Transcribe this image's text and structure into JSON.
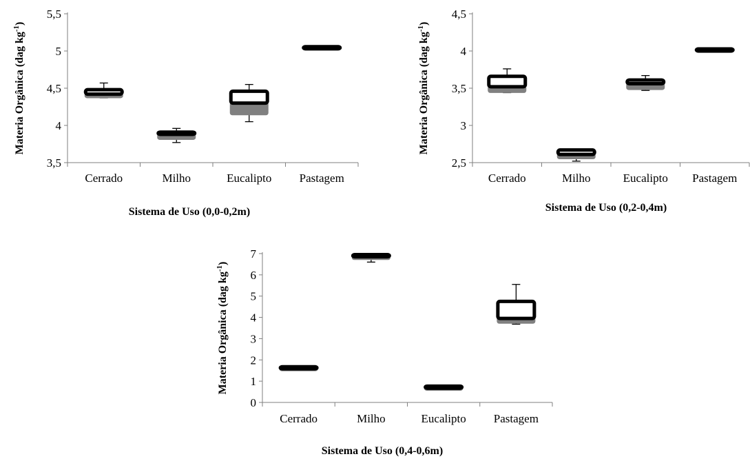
{
  "colors": {
    "upper_box": "#000000",
    "lower_box": "#808080",
    "axis": "#7f7f7f",
    "text": "#000000"
  },
  "chart_data": [
    {
      "type": "box",
      "title": "",
      "xlabel": "Sistema de Uso (0,0-0,2m)",
      "ylabel_main": "Materia Orgânica (dag kg",
      "ylabel_sup": "-1",
      "ylabel_end": ")",
      "ylim": [
        3.5,
        5.5
      ],
      "yticks": [
        3.5,
        4,
        4.5,
        5,
        5.5
      ],
      "ytick_labels": [
        "3,5",
        "4",
        "4,5",
        "5",
        "5,5"
      ],
      "categories": [
        "Cerrado",
        "Milho",
        "Eucalipto",
        "Pastagem"
      ],
      "boxes": [
        {
          "min": 4.37,
          "q1": 4.38,
          "median": 4.42,
          "q3": 4.48,
          "max": 4.57
        },
        {
          "min": 3.77,
          "q1": 3.82,
          "median": 3.88,
          "q3": 3.91,
          "max": 3.96
        },
        {
          "min": 4.05,
          "q1": 4.15,
          "median": 4.3,
          "q3": 4.46,
          "max": 4.55
        },
        {
          "min": 5.02,
          "q1": 5.02,
          "median": 5.03,
          "q3": 5.04,
          "max": 5.04
        }
      ]
    },
    {
      "type": "box",
      "title": "",
      "xlabel": "Sistema de Uso (0,2-0,4m)",
      "ylabel_main": "Materia Orgânica (dag kg",
      "ylabel_sup": "-1",
      "ylabel_end": ")",
      "ylim": [
        2.5,
        4.5
      ],
      "yticks": [
        2.5,
        3,
        3.5,
        4,
        4.5
      ],
      "ytick_labels": [
        "2,5",
        "3",
        "3,5",
        "4",
        "4,5"
      ],
      "categories": [
        "Cerrado",
        "Milho",
        "Eucalipto",
        "Pastagem"
      ],
      "boxes": [
        {
          "min": 3.44,
          "q1": 3.45,
          "median": 3.52,
          "q3": 3.66,
          "max": 3.76
        },
        {
          "min": 2.52,
          "q1": 2.56,
          "median": 2.61,
          "q3": 2.67,
          "max": 2.68
        },
        {
          "min": 3.47,
          "q1": 3.49,
          "median": 3.56,
          "q3": 3.61,
          "max": 3.67
        },
        {
          "min": 3.99,
          "q1": 3.99,
          "median": 4.0,
          "q3": 4.01,
          "max": 4.01
        }
      ]
    },
    {
      "type": "box",
      "title": "",
      "xlabel": "Sistema de Uso (0,4-0,6m)",
      "ylabel_main": "Materia Orgânica (dag kg",
      "ylabel_sup": "-1",
      "ylabel_end": ")",
      "ylim": [
        0,
        7
      ],
      "yticks": [
        0,
        1,
        2,
        3,
        4,
        5,
        6,
        7
      ],
      "ytick_labels": [
        "0",
        "1",
        "2",
        "3",
        "4",
        "5",
        "6",
        "7"
      ],
      "categories": [
        "Cerrado",
        "Milho",
        "Eucalipto",
        "Pastagem"
      ],
      "boxes": [
        {
          "min": 1.5,
          "q1": 1.52,
          "median": 1.58,
          "q3": 1.65,
          "max": 1.7
        },
        {
          "min": 6.6,
          "q1": 6.75,
          "median": 6.85,
          "q3": 6.95,
          "max": 7.0
        },
        {
          "min": 0.58,
          "q1": 0.6,
          "median": 0.67,
          "q3": 0.75,
          "max": 0.78
        },
        {
          "min": 3.68,
          "q1": 3.75,
          "median": 3.95,
          "q3": 4.75,
          "max": 5.55
        }
      ]
    }
  ]
}
